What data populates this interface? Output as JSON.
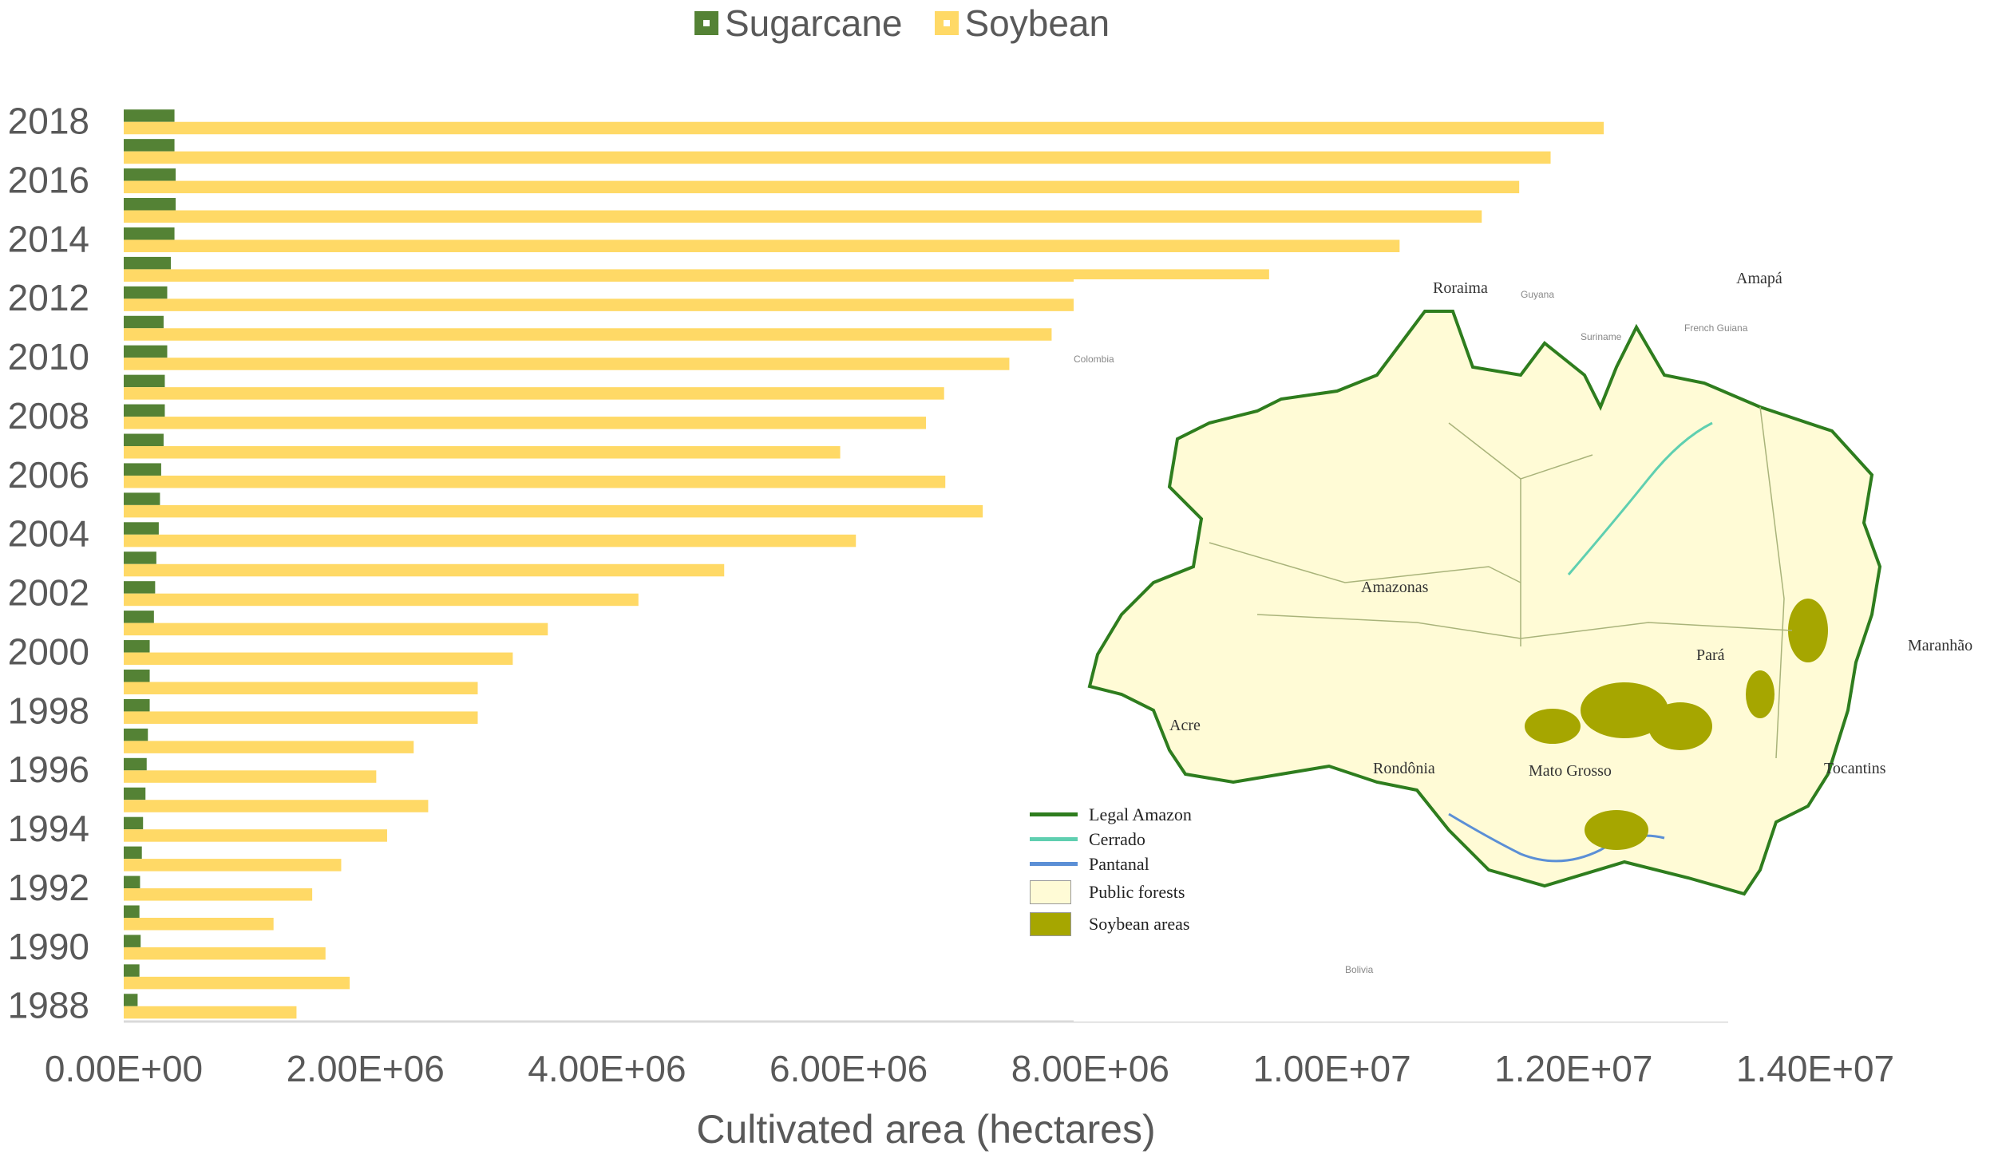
{
  "chart_data": {
    "type": "bar",
    "orientation": "horizontal",
    "xlabel": "Cultivated area (hectares)",
    "ylabel": "",
    "xlim": [
      0,
      14000000
    ],
    "x_ticks": [
      "0.00E+00",
      "2.00E+06",
      "4.00E+06",
      "6.00E+06",
      "8.00E+06",
      "1.00E+07",
      "1.20E+07",
      "1.40E+07"
    ],
    "legend_position": "top",
    "categories": [
      "1988",
      "1989",
      "1990",
      "1991",
      "1992",
      "1993",
      "1994",
      "1995",
      "1996",
      "1997",
      "1998",
      "1999",
      "2000",
      "2001",
      "2002",
      "2003",
      "2004",
      "2005",
      "2006",
      "2007",
      "2008",
      "2009",
      "2010",
      "2011",
      "2012",
      "2013",
      "2014",
      "2015",
      "2016",
      "2017",
      "2018"
    ],
    "y_tick_labels": [
      "1988",
      "1990",
      "1992",
      "1994",
      "1996",
      "1998",
      "2000",
      "2002",
      "2004",
      "2006",
      "2008",
      "2010",
      "2012",
      "2014",
      "2016",
      "2018"
    ],
    "series": [
      {
        "name": "Sugarcane",
        "color": "#548235",
        "values": [
          115000,
          130000,
          140000,
          130000,
          135000,
          150000,
          160000,
          180000,
          190000,
          200000,
          215000,
          215000,
          215000,
          250000,
          260000,
          270000,
          290000,
          300000,
          310000,
          330000,
          340000,
          340000,
          360000,
          330000,
          360000,
          390000,
          420000,
          430000,
          430000,
          420000,
          420000
        ]
      },
      {
        "name": "Soybean",
        "color": "#ffd966",
        "values": [
          1430000,
          1870000,
          1670000,
          1240000,
          1560000,
          1800000,
          2180000,
          2520000,
          2090000,
          2400000,
          2930000,
          2930000,
          3220000,
          3510000,
          4260000,
          4970000,
          6060000,
          7110000,
          6800000,
          5930000,
          6640000,
          6790000,
          7330000,
          7680000,
          8270000,
          9480000,
          10560000,
          11240000,
          11550000,
          11810000,
          12250000
        ]
      }
    ]
  },
  "map": {
    "region_labels": [
      "Roraima",
      "Amapá",
      "Amazonas",
      "Pará",
      "Maranhão",
      "Acre",
      "Rondônia",
      "Mato Grosso",
      "Tocantins"
    ],
    "country_labels": [
      "Guyana",
      "Suriname",
      "French Guiana",
      "Colombia",
      "Bolivia"
    ],
    "legend": [
      {
        "label": "Legal Amazon",
        "color": "#2e7d1e",
        "kind": "line"
      },
      {
        "label": "Cerrado",
        "color": "#5fcfb0",
        "kind": "line"
      },
      {
        "label": "Pantanal",
        "color": "#5b8fd6",
        "kind": "line"
      },
      {
        "label": "Public forests",
        "color": "#fffbd6",
        "kind": "box"
      },
      {
        "label": "Soybean areas",
        "color": "#a6a600",
        "kind": "box"
      }
    ]
  }
}
